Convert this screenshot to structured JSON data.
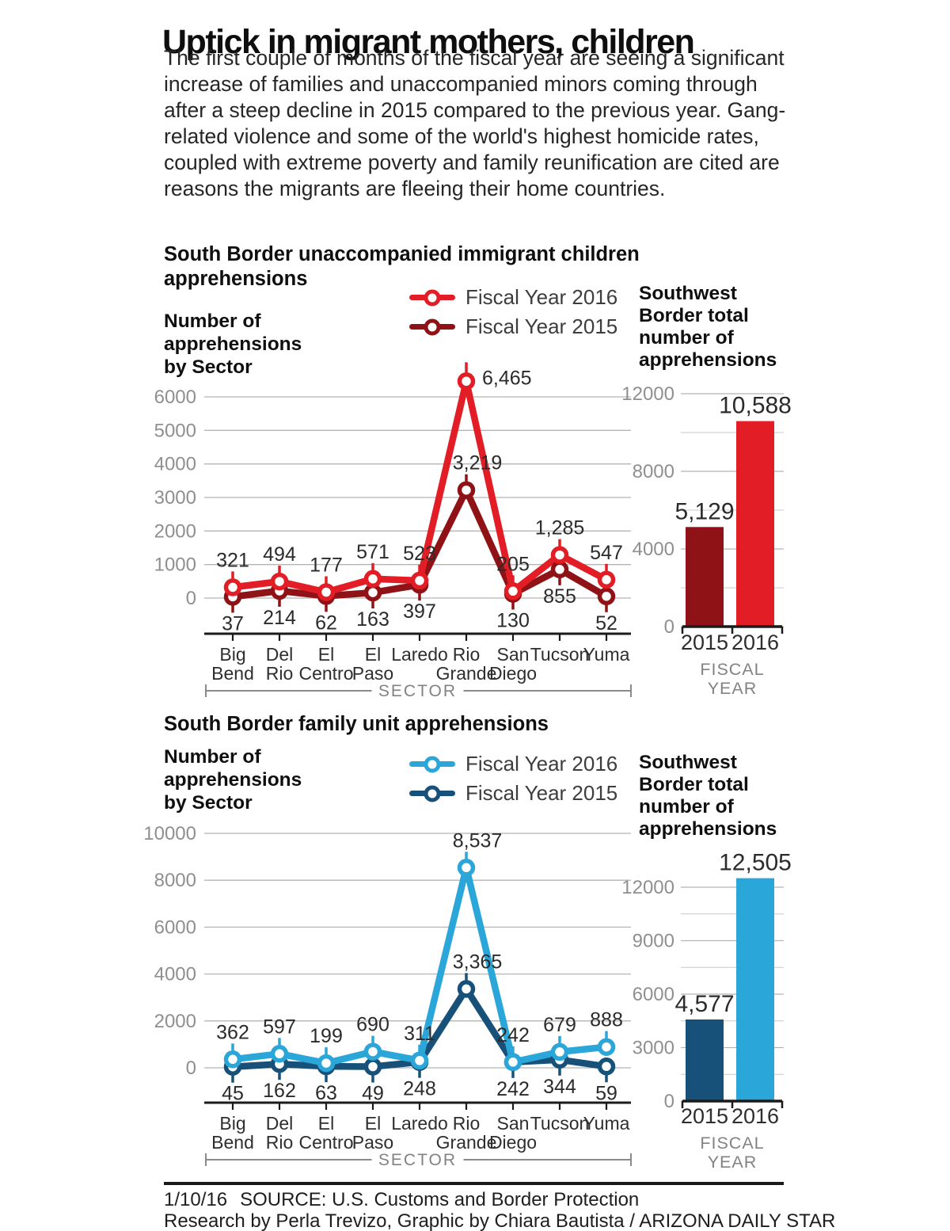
{
  "title": "Uptick in migrant mothers, children",
  "intro": "The first couple of months of the fiscal year are seeing a significant increase of families and unaccompanied minors coming through after a steep decline in 2015 compared to the previous year. Gang-related violence and some of the world's highest homicide rates, coupled with extreme poverty and family reunification are cited are reasons the migrants are fleeing their home countries.",
  "chart_data": [
    {
      "id": "children-line",
      "type": "line",
      "title": "South Border unaccompanied immigrant children apprehensions",
      "ylabel": "Number of apprehensions by Sector",
      "xlabel": "SECTOR",
      "categories": [
        "Big Bend",
        "Del Rio",
        "El Centro",
        "El Paso",
        "Laredo",
        "Rio Grande",
        "San Diego",
        "Tucson",
        "Yuma"
      ],
      "category_lines": [
        [
          "Big",
          "Bend"
        ],
        [
          "Del",
          "Rio"
        ],
        [
          "El",
          "Centro"
        ],
        [
          "El",
          "Paso"
        ],
        [
          "Laredo"
        ],
        [
          "Rio",
          "Grande"
        ],
        [
          "San",
          "Diego"
        ],
        [
          "Tucson"
        ],
        [
          "Yuma"
        ]
      ],
      "yticks": [
        0,
        1000,
        2000,
        3000,
        4000,
        5000,
        6000
      ],
      "ylim": [
        0,
        6500
      ],
      "grid": true,
      "legend_position": "top",
      "series": [
        {
          "name": "Fiscal Year 2016",
          "color": "#e21d25",
          "values": [
            321,
            494,
            177,
            571,
            523,
            6465,
            205,
            1285,
            547
          ],
          "labels": [
            "321",
            "494",
            "177",
            "571",
            "523",
            "6,465",
            "205",
            "1,285",
            "547"
          ]
        },
        {
          "name": "Fiscal Year 2015",
          "color": "#8f1216",
          "values": [
            37,
            214,
            62,
            163,
            397,
            3219,
            130,
            855,
            52
          ],
          "labels": [
            "37",
            "214",
            "62",
            "163",
            "397",
            "3,219",
            "130",
            "855",
            "52"
          ]
        }
      ]
    },
    {
      "id": "children-bar",
      "type": "bar",
      "title": "Southwest Border total number of apprehensions",
      "xlabel": "FISCAL YEAR",
      "categories": [
        "2015",
        "2016"
      ],
      "values": [
        5129,
        10588
      ],
      "labels": [
        "5,129",
        "10,588"
      ],
      "colors": [
        "#8f1216",
        "#e21d25"
      ],
      "yticks_major": [
        0,
        4000,
        8000,
        12000
      ],
      "yticks_minor": [
        2000,
        6000,
        10000
      ],
      "ylim": [
        0,
        12000
      ]
    },
    {
      "id": "family-line",
      "type": "line",
      "title": "South Border family unit apprehensions",
      "ylabel": "Number of apprehensions by Sector",
      "xlabel": "SECTOR",
      "categories": [
        "Big Bend",
        "Del Rio",
        "El Centro",
        "El Paso",
        "Laredo",
        "Rio Grande",
        "San Diego",
        "Tucson",
        "Yuma"
      ],
      "category_lines": [
        [
          "Big",
          "Bend"
        ],
        [
          "Del",
          "Rio"
        ],
        [
          "El",
          "Centro"
        ],
        [
          "El",
          "Paso"
        ],
        [
          "Laredo"
        ],
        [
          "Rio",
          "Grande"
        ],
        [
          "San",
          "Diego"
        ],
        [
          "Tucson"
        ],
        [
          "Yuma"
        ]
      ],
      "yticks": [
        0,
        2000,
        4000,
        6000,
        8000,
        10000
      ],
      "ylim": [
        0,
        10000
      ],
      "grid": true,
      "legend_position": "top",
      "series": [
        {
          "name": "Fiscal Year 2016",
          "color": "#2ba6d9",
          "values": [
            362,
            597,
            199,
            690,
            311,
            8537,
            242,
            679,
            888
          ],
          "labels": [
            "362",
            "597",
            "199",
            "690",
            "311",
            "8,537",
            "242",
            "679",
            "888"
          ]
        },
        {
          "name": "Fiscal Year 2015",
          "color": "#175078",
          "values": [
            45,
            162,
            63,
            49,
            248,
            3365,
            242,
            344,
            59
          ],
          "labels": [
            "45",
            "162",
            "63",
            "49",
            "248",
            "3,365",
            "242",
            "344",
            "59"
          ]
        }
      ]
    },
    {
      "id": "family-bar",
      "type": "bar",
      "title": "Southwest Border total number of apprehensions",
      "xlabel": "FISCAL YEAR",
      "categories": [
        "2015",
        "2016"
      ],
      "values": [
        4577,
        12505
      ],
      "labels": [
        "4,577",
        "12,505"
      ],
      "colors": [
        "#175078",
        "#2ba6d9"
      ],
      "yticks_major": [
        0,
        3000,
        6000,
        9000,
        12000
      ],
      "yticks_minor": [
        1500,
        4500,
        7500,
        10500
      ],
      "ylim": [
        0,
        12505
      ]
    }
  ],
  "footer": {
    "date": "1/10/16",
    "source": "SOURCE: U.S. Customs and Border Protection",
    "credit": "Research by Perla Trevizo, Graphic by Chiara Bautista / ARIZONA DAILY STAR"
  }
}
